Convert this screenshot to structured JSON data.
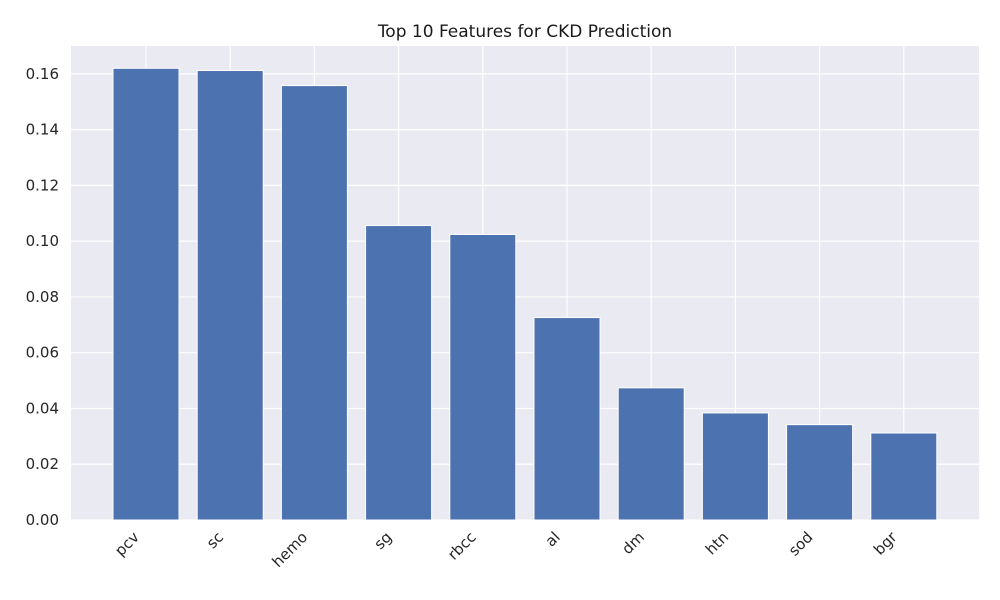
{
  "chart_data": {
    "type": "bar",
    "title": "Top 10 Features for CKD Prediction",
    "xlabel": "",
    "ylabel": "",
    "categories": [
      "pcv",
      "sc",
      "hemo",
      "sg",
      "rbcc",
      "al",
      "dm",
      "htn",
      "sod",
      "bgr"
    ],
    "values": [
      0.162,
      0.1612,
      0.1558,
      0.1056,
      0.1024,
      0.0726,
      0.0474,
      0.0384,
      0.0342,
      0.0312
    ],
    "ylim": [
      0,
      0.17
    ],
    "yticks": [
      0,
      0.02,
      0.04,
      0.06,
      0.08,
      0.1,
      0.12,
      0.14,
      0.16
    ],
    "ytick_labels": [
      "0.00",
      "0.02",
      "0.04",
      "0.06",
      "0.08",
      "0.10",
      "0.12",
      "0.14",
      "0.16"
    ],
    "grid": true,
    "style": "seaborn-darkgrid",
    "colors": {
      "bar": "#4c72b0",
      "plot_background": "#eaeaf2",
      "grid": "#ffffff"
    }
  }
}
